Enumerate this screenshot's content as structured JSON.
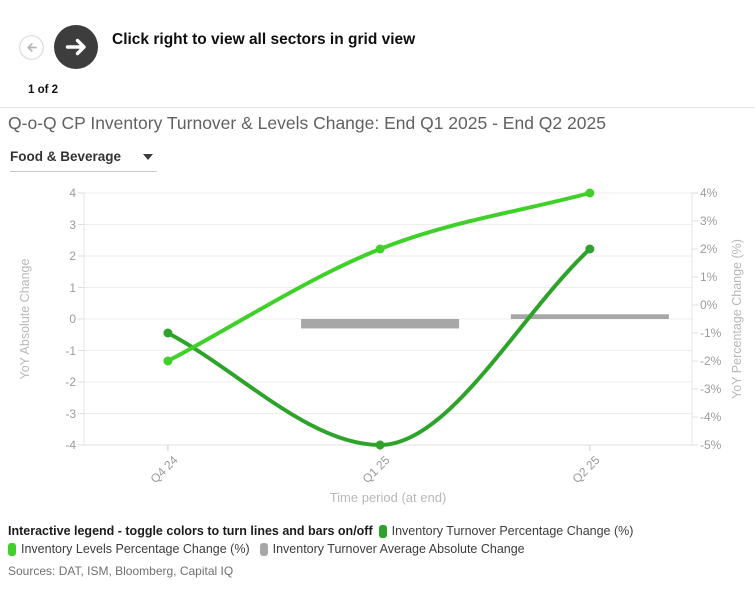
{
  "nav": {
    "prev_icon": "arrow-left",
    "next_icon": "arrow-right",
    "caption": "Click right to view all sectors in grid view",
    "page_indicator": "1 of 2",
    "next_button_color": "#3d3d3d"
  },
  "header": {
    "title": "Q-o-Q CP Inventory Turnover & Levels Change: End Q1 2025 - End Q2 2025",
    "sector_dropdown": {
      "value": "Food & Beverage",
      "icon": "caret-down"
    }
  },
  "chart_data": {
    "type": "line",
    "categories": [
      "Q4 24",
      "Q1 25",
      "Q2 25"
    ],
    "series": [
      {
        "name": "Inventory Turnover Percentage Change (%)",
        "type": "spline",
        "axis": "right",
        "color": "#2ea32a",
        "values": [
          -1,
          -5,
          2
        ]
      },
      {
        "name": "Inventory Levels Percentage Change (%)",
        "type": "spline",
        "axis": "right",
        "color": "#3fd02a",
        "values": [
          -2,
          2,
          4
        ]
      },
      {
        "name": "Inventory Turnover Average Absolute Change",
        "type": "bar",
        "axis": "left",
        "color": "#a7a7a7",
        "values": [
          null,
          -0.3,
          0.15
        ]
      }
    ],
    "left_axis": {
      "label": "YoY Absolute Change",
      "min": -4,
      "max": 4,
      "ticks": [
        4,
        3,
        2,
        1,
        0,
        -1,
        -2,
        -3,
        -4
      ]
    },
    "right_axis": {
      "label": "YoY Percentage Change (%)",
      "min": -5,
      "max": 4,
      "ticks": [
        "4%",
        "3%",
        "2%",
        "1%",
        "0%",
        "-1%",
        "-2%",
        "-3%",
        "-4%",
        "-5%"
      ]
    },
    "x_axis": {
      "label": "Time period (at end)"
    },
    "grid": true,
    "legend_position": "bottom"
  },
  "legend": {
    "hint": "Interactive legend - toggle colors to turn lines and bars on/off",
    "items": [
      {
        "label": "Inventory Turnover Percentage Change (%)"
      },
      {
        "label": "Inventory Levels Percentage Change (%)"
      },
      {
        "label": "Inventory Turnover Average Absolute Change"
      }
    ]
  },
  "footer": {
    "sources": "Sources: DAT, ISM, Bloomberg, Capital IQ"
  }
}
